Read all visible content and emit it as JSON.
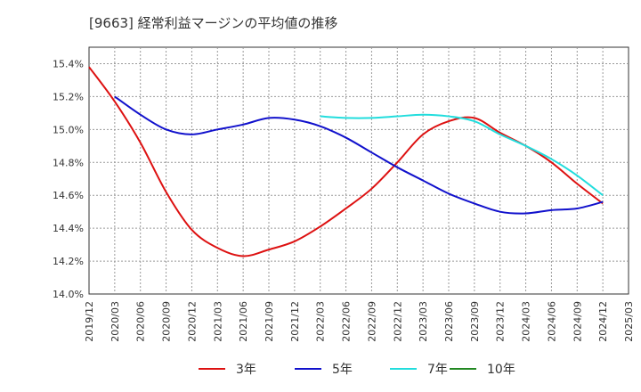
{
  "chart_data": {
    "type": "line",
    "title": "[9663]  経常利益マージンの平均値の推移",
    "xlabel": "",
    "ylabel": "",
    "x_ticks": [
      "2019/12",
      "2020/03",
      "2020/06",
      "2020/09",
      "2020/12",
      "2021/03",
      "2021/06",
      "2021/09",
      "2021/12",
      "2022/03",
      "2022/06",
      "2022/09",
      "2022/12",
      "2023/03",
      "2023/06",
      "2023/09",
      "2023/12",
      "2024/03",
      "2024/06",
      "2024/09",
      "2024/12",
      "2025/03"
    ],
    "y_ticks": [
      "14.0%",
      "14.2%",
      "14.4%",
      "14.6%",
      "14.8%",
      "15.0%",
      "15.2%",
      "15.4%"
    ],
    "ylim": [
      14.0,
      15.5
    ],
    "grid": true,
    "legend_position": "bottom",
    "series": [
      {
        "name": "3年",
        "color": "#dd1111",
        "points": [
          [
            "2019/12",
            15.38
          ],
          [
            "2020/03",
            15.17
          ],
          [
            "2020/06",
            14.92
          ],
          [
            "2020/09",
            14.62
          ],
          [
            "2020/12",
            14.39
          ],
          [
            "2021/03",
            14.28
          ],
          [
            "2021/06",
            14.23
          ],
          [
            "2021/09",
            14.27
          ],
          [
            "2021/12",
            14.32
          ],
          [
            "2022/03",
            14.41
          ],
          [
            "2022/06",
            14.52
          ],
          [
            "2022/09",
            14.64
          ],
          [
            "2022/12",
            14.8
          ],
          [
            "2023/03",
            14.97
          ],
          [
            "2023/06",
            15.05
          ],
          [
            "2023/09",
            15.07
          ],
          [
            "2023/12",
            14.98
          ],
          [
            "2024/03",
            14.9
          ],
          [
            "2024/06",
            14.8
          ],
          [
            "2024/09",
            14.67
          ],
          [
            "2024/12",
            14.55
          ]
        ]
      },
      {
        "name": "5年",
        "color": "#1111cc",
        "points": [
          [
            "2020/03",
            15.2
          ],
          [
            "2020/06",
            15.09
          ],
          [
            "2020/09",
            15.0
          ],
          [
            "2020/12",
            14.97
          ],
          [
            "2021/03",
            15.0
          ],
          [
            "2021/06",
            15.03
          ],
          [
            "2021/09",
            15.07
          ],
          [
            "2021/12",
            15.06
          ],
          [
            "2022/03",
            15.02
          ],
          [
            "2022/06",
            14.95
          ],
          [
            "2022/09",
            14.86
          ],
          [
            "2022/12",
            14.77
          ],
          [
            "2023/03",
            14.69
          ],
          [
            "2023/06",
            14.61
          ],
          [
            "2023/09",
            14.55
          ],
          [
            "2023/12",
            14.5
          ],
          [
            "2024/03",
            14.49
          ],
          [
            "2024/06",
            14.51
          ],
          [
            "2024/09",
            14.52
          ],
          [
            "2024/12",
            14.56
          ]
        ]
      },
      {
        "name": "7年",
        "color": "#22dddd",
        "points": [
          [
            "2022/03",
            15.08
          ],
          [
            "2022/06",
            15.07
          ],
          [
            "2022/09",
            15.07
          ],
          [
            "2022/12",
            15.08
          ],
          [
            "2023/03",
            15.09
          ],
          [
            "2023/06",
            15.08
          ],
          [
            "2023/09",
            15.05
          ],
          [
            "2023/12",
            14.97
          ],
          [
            "2024/03",
            14.9
          ],
          [
            "2024/06",
            14.82
          ],
          [
            "2024/09",
            14.72
          ],
          [
            "2024/12",
            14.6
          ]
        ]
      },
      {
        "name": "10年",
        "color": "#228822",
        "points": []
      }
    ]
  }
}
